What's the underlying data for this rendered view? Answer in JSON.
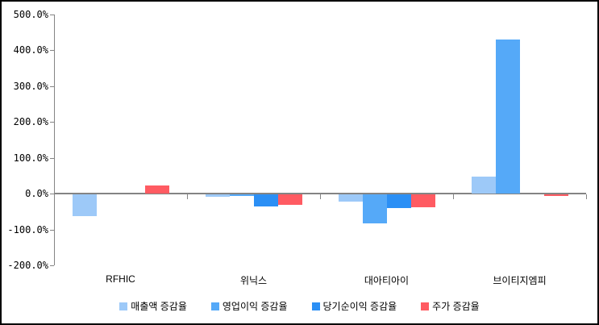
{
  "chart_data": {
    "type": "bar",
    "categories": [
      "RFHIC",
      "위닉스",
      "대아티아이",
      "브이티지엠피"
    ],
    "series": [
      {
        "name": "매출액 증감율",
        "color": "#9DC9F8",
        "values": [
          -60,
          -7,
          -20,
          48
        ]
      },
      {
        "name": "영업이익 증감율",
        "color": "#55A9F8",
        "values": [
          0,
          -4,
          -80,
          430
        ]
      },
      {
        "name": "당기순이익 증감율",
        "color": "#2B8FF5",
        "values": [
          0,
          -34,
          -38,
          0
        ]
      },
      {
        "name": "주가 증감율",
        "color": "#FF5B62",
        "values": [
          23,
          -30,
          -36,
          -5
        ]
      }
    ],
    "ylim": [
      -200,
      500
    ],
    "ytick_step": 100,
    "ytick_labels": [
      "500.0%",
      "400.0%",
      "300.0%",
      "200.0%",
      "100.0%",
      "0.0%",
      "-100.0%",
      "-200.0%"
    ],
    "xlabel": "",
    "ylabel": "",
    "grid": false,
    "legend_position": "bottom",
    "axis_color": "#848484",
    "background_color": "#FFFFFF",
    "border_color": "#000000"
  }
}
